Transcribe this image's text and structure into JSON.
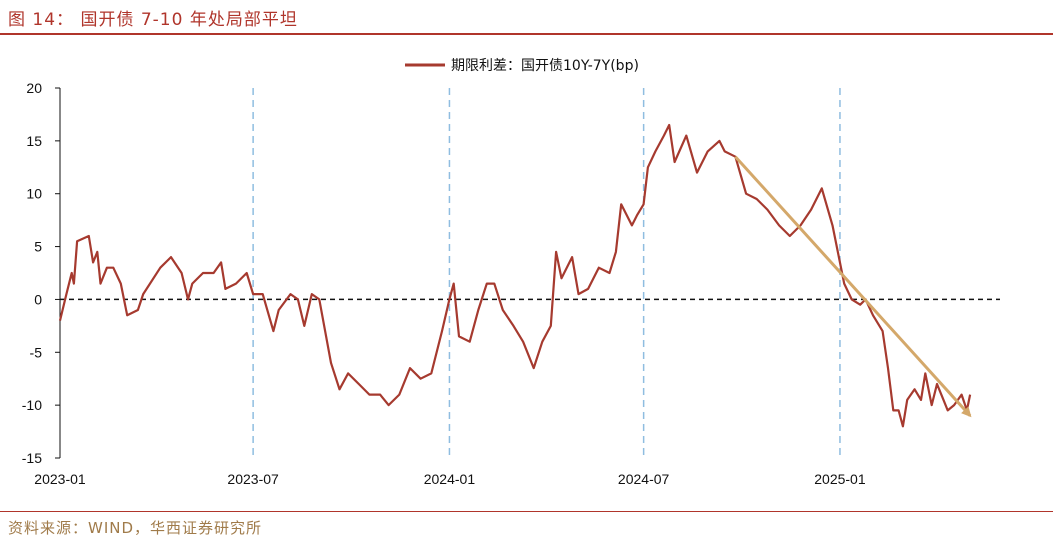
{
  "page": {
    "figure_title": "图 14： 国开债 7-10 年处局部平坦",
    "source": "资料来源：WIND，华西证券研究所"
  },
  "colors": {
    "series": "#a63a2f",
    "trend": "#d4a86a",
    "vline": "#8fbde0",
    "rule": "#b0352b",
    "source": "#a07b4a"
  },
  "chart_data": {
    "type": "line",
    "title": "",
    "xlabel": "",
    "ylabel": "",
    "ylim": [
      -15,
      20
    ],
    "yticks": [
      20,
      15,
      10,
      5,
      0,
      -5,
      -10,
      -15
    ],
    "xlim": [
      "2023-01-01",
      "2025-05-31"
    ],
    "xticks": [
      {
        "date": "2023-01-01",
        "label": "2023-01"
      },
      {
        "date": "2023-07-01",
        "label": "2023-07"
      },
      {
        "date": "2024-01-01",
        "label": "2024-01"
      },
      {
        "date": "2024-07-01",
        "label": "2024-07"
      },
      {
        "date": "2025-01-01",
        "label": "2025-01"
      }
    ],
    "vertical_lines": [
      "2023-07-01",
      "2024-01-01",
      "2024-07-01",
      "2025-01-01"
    ],
    "zero_line": 0,
    "legend": {
      "placement": "top-center"
    },
    "series": [
      {
        "name": "期限利差：国开债10Y-7Y(bp)",
        "points": [
          [
            "2023-01-01",
            -2.0
          ],
          [
            "2023-01-07",
            0.5
          ],
          [
            "2023-01-12",
            2.5
          ],
          [
            "2023-01-14",
            1.5
          ],
          [
            "2023-01-17",
            5.5
          ],
          [
            "2023-01-28",
            6.0
          ],
          [
            "2023-02-01",
            3.5
          ],
          [
            "2023-02-05",
            4.5
          ],
          [
            "2023-02-08",
            1.5
          ],
          [
            "2023-02-14",
            3.0
          ],
          [
            "2023-02-20",
            3.0
          ],
          [
            "2023-02-27",
            1.5
          ],
          [
            "2023-03-05",
            -1.5
          ],
          [
            "2023-03-15",
            -1.0
          ],
          [
            "2023-03-20",
            0.5
          ],
          [
            "2023-04-05",
            3.0
          ],
          [
            "2023-04-15",
            4.0
          ],
          [
            "2023-04-25",
            2.5
          ],
          [
            "2023-05-01",
            0.0
          ],
          [
            "2023-05-05",
            1.5
          ],
          [
            "2023-05-15",
            2.5
          ],
          [
            "2023-05-25",
            2.5
          ],
          [
            "2023-06-01",
            3.5
          ],
          [
            "2023-06-05",
            1.0
          ],
          [
            "2023-06-15",
            1.5
          ],
          [
            "2023-06-25",
            2.5
          ],
          [
            "2023-07-01",
            0.5
          ],
          [
            "2023-07-10",
            0.5
          ],
          [
            "2023-07-20",
            -3.0
          ],
          [
            "2023-07-25",
            -1.0
          ],
          [
            "2023-08-05",
            0.5
          ],
          [
            "2023-08-12",
            0.0
          ],
          [
            "2023-08-18",
            -2.5
          ],
          [
            "2023-08-25",
            0.5
          ],
          [
            "2023-09-01",
            0.0
          ],
          [
            "2023-09-12",
            -6.0
          ],
          [
            "2023-09-20",
            -8.5
          ],
          [
            "2023-09-28",
            -7.0
          ],
          [
            "2023-10-08",
            -8.0
          ],
          [
            "2023-10-18",
            -9.0
          ],
          [
            "2023-10-28",
            -9.0
          ],
          [
            "2023-11-05",
            -10.0
          ],
          [
            "2023-11-15",
            -9.0
          ],
          [
            "2023-11-25",
            -6.5
          ],
          [
            "2023-12-05",
            -7.5
          ],
          [
            "2023-12-15",
            -7.0
          ],
          [
            "2023-12-25",
            -3.0
          ],
          [
            "2024-01-01",
            0.0
          ],
          [
            "2024-01-05",
            1.5
          ],
          [
            "2024-01-10",
            -3.5
          ],
          [
            "2024-01-20",
            -4.0
          ],
          [
            "2024-01-28",
            -1.0
          ],
          [
            "2024-02-05",
            1.5
          ],
          [
            "2024-02-12",
            1.5
          ],
          [
            "2024-02-20",
            -1.0
          ],
          [
            "2024-03-01",
            -2.5
          ],
          [
            "2024-03-10",
            -4.0
          ],
          [
            "2024-03-20",
            -6.5
          ],
          [
            "2024-03-28",
            -4.0
          ],
          [
            "2024-04-05",
            -2.5
          ],
          [
            "2024-04-10",
            4.5
          ],
          [
            "2024-04-15",
            2.0
          ],
          [
            "2024-04-25",
            4.0
          ],
          [
            "2024-05-01",
            0.5
          ],
          [
            "2024-05-10",
            1.0
          ],
          [
            "2024-05-20",
            3.0
          ],
          [
            "2024-05-30",
            2.5
          ],
          [
            "2024-06-05",
            4.5
          ],
          [
            "2024-06-10",
            9.0
          ],
          [
            "2024-06-20",
            7.0
          ],
          [
            "2024-06-25",
            8.0
          ],
          [
            "2024-07-01",
            9.0
          ],
          [
            "2024-07-05",
            12.5
          ],
          [
            "2024-07-12",
            14.0
          ],
          [
            "2024-07-20",
            15.5
          ],
          [
            "2024-07-25",
            16.5
          ],
          [
            "2024-07-30",
            13.0
          ],
          [
            "2024-08-10",
            15.5
          ],
          [
            "2024-08-20",
            12.0
          ],
          [
            "2024-08-30",
            14.0
          ],
          [
            "2024-09-10",
            15.0
          ],
          [
            "2024-09-15",
            14.0
          ],
          [
            "2024-09-25",
            13.5
          ],
          [
            "2024-10-05",
            10.0
          ],
          [
            "2024-10-15",
            9.5
          ],
          [
            "2024-10-25",
            8.5
          ],
          [
            "2024-11-05",
            7.0
          ],
          [
            "2024-11-15",
            6.0
          ],
          [
            "2024-11-25",
            7.0
          ],
          [
            "2024-12-05",
            8.5
          ],
          [
            "2024-12-15",
            10.5
          ],
          [
            "2024-12-25",
            7.0
          ],
          [
            "2025-01-05",
            1.5
          ],
          [
            "2025-01-12",
            0.0
          ],
          [
            "2025-01-20",
            -0.5
          ],
          [
            "2025-01-25",
            0.0
          ],
          [
            "2025-02-01",
            -1.5
          ],
          [
            "2025-02-10",
            -3.0
          ],
          [
            "2025-02-15",
            -6.5
          ],
          [
            "2025-02-20",
            -10.5
          ],
          [
            "2025-02-25",
            -10.5
          ],
          [
            "2025-03-01",
            -12.0
          ],
          [
            "2025-03-05",
            -9.5
          ],
          [
            "2025-03-12",
            -8.5
          ],
          [
            "2025-03-18",
            -9.5
          ],
          [
            "2025-03-22",
            -7.0
          ],
          [
            "2025-03-28",
            -10.0
          ],
          [
            "2025-04-02",
            -8.0
          ],
          [
            "2025-04-08",
            -9.5
          ],
          [
            "2025-04-12",
            -10.5
          ],
          [
            "2025-04-18",
            -10.0
          ],
          [
            "2025-04-25",
            -9.0
          ],
          [
            "2025-04-30",
            -10.5
          ],
          [
            "2025-05-03",
            -9.0
          ]
        ]
      }
    ],
    "annotations": [
      {
        "type": "trend-arrow",
        "from": [
          "2024-09-25",
          13.5
        ],
        "to": [
          "2025-05-03",
          -11.0
        ]
      }
    ]
  }
}
